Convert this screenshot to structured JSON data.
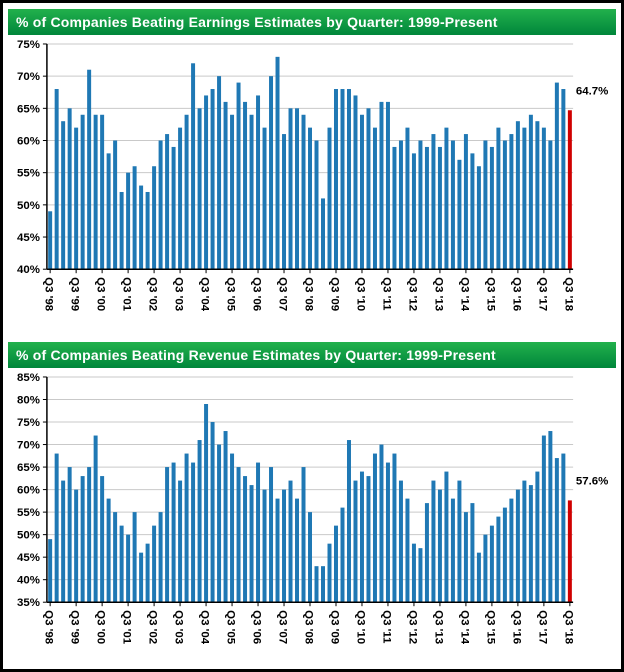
{
  "theme": {
    "bar_color": "#1F78B4",
    "highlight_color": "#D00000",
    "grid_color": "#C9C9C9",
    "axis_color": "#000000",
    "title_bg_top": "#22B14C",
    "title_bg_bottom": "#00863B",
    "title_text": "#FFFFFF",
    "frame_color": "#000000"
  },
  "chart_data": [
    {
      "type": "bar",
      "title": "% of Companies Beating Earnings Estimates by Quarter: 1999-Present",
      "xlabel": "",
      "ylabel": "",
      "ylim": [
        40,
        75
      ],
      "ytick_step": 5,
      "ytick_suffix": "%",
      "grid": true,
      "legend": "none",
      "x_tick_every": 4,
      "x_tick_labels": [
        "Q3 '98",
        "Q3 '99",
        "Q3 '00",
        "Q3 '01",
        "Q3 '02",
        "Q3 '03",
        "Q3 '04",
        "Q3 '05",
        "Q3 '06",
        "Q3 '07",
        "Q3 '08",
        "Q3 '09",
        "Q3 '10",
        "Q3 '11",
        "Q3 '12",
        "Q3 '13",
        "Q3 '14",
        "Q3 '15",
        "Q3 '16",
        "Q3 '17",
        "Q3 '18"
      ],
      "values": [
        49,
        68,
        63,
        65,
        62,
        64,
        71,
        64,
        64,
        58,
        60,
        52,
        55,
        56,
        53,
        52,
        56,
        60,
        61,
        59,
        62,
        64,
        72,
        65,
        67,
        68,
        70,
        66,
        64,
        69,
        66,
        64,
        67,
        62,
        70,
        73,
        61,
        65,
        65,
        64,
        62,
        60,
        51,
        62,
        68,
        68,
        68,
        67,
        64,
        65,
        62,
        66,
        66,
        59,
        60,
        62,
        58,
        60,
        59,
        61,
        59,
        62,
        60,
        57,
        61,
        58,
        56,
        60,
        59,
        62,
        60,
        61,
        63,
        62,
        64,
        63,
        62,
        60,
        69,
        68,
        64.7
      ],
      "highlight_last": true,
      "last_label": "64.7%"
    },
    {
      "type": "bar",
      "title": "% of Companies Beating Revenue Estimates by Quarter: 1999-Present",
      "xlabel": "",
      "ylabel": "",
      "ylim": [
        35,
        85
      ],
      "ytick_step": 5,
      "ytick_suffix": "%",
      "grid": true,
      "legend": "none",
      "x_tick_every": 4,
      "x_tick_labels": [
        "Q3 '98",
        "Q3 '99",
        "Q3 '00",
        "Q3 '01",
        "Q3 '02",
        "Q3 '03",
        "Q3 '04",
        "Q3 '05",
        "Q3 '06",
        "Q3 '07",
        "Q3 '08",
        "Q3 '09",
        "Q3 '10",
        "Q3 '11",
        "Q3 '12",
        "Q3 '13",
        "Q3 '14",
        "Q3 '15",
        "Q3 '16",
        "Q3 '17",
        "Q3 '18"
      ],
      "values": [
        49,
        68,
        62,
        65,
        60,
        63,
        65,
        72,
        63,
        58,
        55,
        52,
        50,
        55,
        46,
        48,
        52,
        55,
        65,
        66,
        62,
        68,
        66,
        71,
        79,
        75,
        70,
        73,
        68,
        65,
        63,
        61,
        66,
        60,
        65,
        58,
        60,
        62,
        58,
        65,
        55,
        43,
        43,
        48,
        52,
        56,
        71,
        62,
        64,
        63,
        68,
        70,
        66,
        68,
        62,
        58,
        48,
        47,
        57,
        62,
        60,
        64,
        58,
        62,
        55,
        57,
        46,
        50,
        52,
        54,
        56,
        58,
        60,
        62,
        61,
        64,
        72,
        73,
        67,
        68,
        57.6
      ],
      "highlight_last": true,
      "last_label": "57.6%"
    }
  ]
}
